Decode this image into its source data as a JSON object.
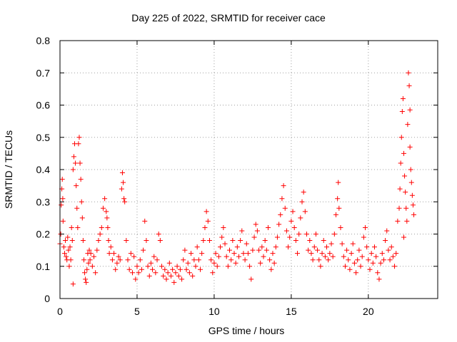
{
  "chart_data": {
    "type": "scatter",
    "title": "Day 225 of 2022, SRMTID for receiver cace",
    "xlabel": "GPS time / hours",
    "ylabel": "SRMTID / TECUs",
    "xlim": [
      0,
      24.5
    ],
    "ylim": [
      0,
      0.8
    ],
    "x_ticks": [
      0,
      5,
      10,
      15,
      20
    ],
    "y_ticks": [
      0,
      0.1,
      0.2,
      0.3,
      0.4,
      0.5,
      0.6,
      0.7,
      0.8
    ],
    "x_tick_labels": [
      "0",
      "5",
      "10",
      "15",
      "20"
    ],
    "y_tick_labels": [
      "0",
      "0.1",
      "0.2",
      "0.3",
      "0.4",
      "0.5",
      "0.6",
      "0.7",
      "0.8"
    ],
    "grid": true,
    "marker": "+",
    "color": "#ff0000",
    "series": [
      {
        "name": "SRMTID",
        "points": [
          [
            0.0,
            0.17
          ],
          [
            0.05,
            0.2
          ],
          [
            0.08,
            0.29
          ],
          [
            0.12,
            0.34
          ],
          [
            0.15,
            0.37
          ],
          [
            0.18,
            0.31
          ],
          [
            0.2,
            0.24
          ],
          [
            0.25,
            0.16
          ],
          [
            0.3,
            0.14
          ],
          [
            0.35,
            0.18
          ],
          [
            0.4,
            0.13
          ],
          [
            0.45,
            0.12
          ],
          [
            0.5,
            0.19
          ],
          [
            0.55,
            0.15
          ],
          [
            0.6,
            0.1
          ],
          [
            0.65,
            0.16
          ],
          [
            0.7,
            0.12
          ],
          [
            0.75,
            0.22
          ],
          [
            0.8,
            0.18
          ],
          [
            0.85,
            0.4
          ],
          [
            0.9,
            0.44
          ],
          [
            0.95,
            0.48
          ],
          [
            1.0,
            0.42
          ],
          [
            1.05,
            0.35
          ],
          [
            1.1,
            0.28
          ],
          [
            1.15,
            0.22
          ],
          [
            1.2,
            0.48
          ],
          [
            1.25,
            0.5
          ],
          [
            1.3,
            0.42
          ],
          [
            1.35,
            0.37
          ],
          [
            0.85,
            0.045
          ],
          [
            1.4,
            0.3
          ],
          [
            1.45,
            0.25
          ],
          [
            1.5,
            0.18
          ],
          [
            1.55,
            0.12
          ],
          [
            1.6,
            0.08
          ],
          [
            1.65,
            0.06
          ],
          [
            1.7,
            0.05
          ],
          [
            1.75,
            0.09
          ],
          [
            1.8,
            0.14
          ],
          [
            1.85,
            0.11
          ],
          [
            1.9,
            0.15
          ],
          [
            1.95,
            0.12
          ],
          [
            2.0,
            0.14
          ],
          [
            2.1,
            0.1
          ],
          [
            2.2,
            0.13
          ],
          [
            2.3,
            0.08
          ],
          [
            2.4,
            0.15
          ],
          [
            2.5,
            0.18
          ],
          [
            2.6,
            0.2
          ],
          [
            2.7,
            0.22
          ],
          [
            2.8,
            0.28
          ],
          [
            2.9,
            0.31
          ],
          [
            3.0,
            0.27
          ],
          [
            3.05,
            0.25
          ],
          [
            3.1,
            0.22
          ],
          [
            3.15,
            0.18
          ],
          [
            3.2,
            0.14
          ],
          [
            3.3,
            0.16
          ],
          [
            3.4,
            0.12
          ],
          [
            3.5,
            0.14
          ],
          [
            3.6,
            0.09
          ],
          [
            3.7,
            0.11
          ],
          [
            3.8,
            0.13
          ],
          [
            3.9,
            0.12
          ],
          [
            4.0,
            0.34
          ],
          [
            4.05,
            0.39
          ],
          [
            4.1,
            0.36
          ],
          [
            4.15,
            0.31
          ],
          [
            4.2,
            0.3
          ],
          [
            4.3,
            0.18
          ],
          [
            4.4,
            0.12
          ],
          [
            4.5,
            0.09
          ],
          [
            4.6,
            0.14
          ],
          [
            4.7,
            0.08
          ],
          [
            4.8,
            0.13
          ],
          [
            4.9,
            0.06
          ],
          [
            5.0,
            0.1
          ],
          [
            5.1,
            0.08
          ],
          [
            5.2,
            0.12
          ],
          [
            5.3,
            0.09
          ],
          [
            5.4,
            0.15
          ],
          [
            5.5,
            0.24
          ],
          [
            5.6,
            0.18
          ],
          [
            5.7,
            0.1
          ],
          [
            5.8,
            0.07
          ],
          [
            5.9,
            0.11
          ],
          [
            6.0,
            0.09
          ],
          [
            6.1,
            0.13
          ],
          [
            6.2,
            0.08
          ],
          [
            6.3,
            0.12
          ],
          [
            6.4,
            0.2
          ],
          [
            6.5,
            0.18
          ],
          [
            6.6,
            0.1
          ],
          [
            6.7,
            0.07
          ],
          [
            6.8,
            0.09
          ],
          [
            6.9,
            0.06
          ],
          [
            7.0,
            0.08
          ],
          [
            7.1,
            0.11
          ],
          [
            7.2,
            0.07
          ],
          [
            7.3,
            0.09
          ],
          [
            7.4,
            0.05
          ],
          [
            7.5,
            0.08
          ],
          [
            7.6,
            0.1
          ],
          [
            7.7,
            0.07
          ],
          [
            7.8,
            0.09
          ],
          [
            7.9,
            0.06
          ],
          [
            8.0,
            0.12
          ],
          [
            8.1,
            0.15
          ],
          [
            8.2,
            0.09
          ],
          [
            8.3,
            0.11
          ],
          [
            8.4,
            0.08
          ],
          [
            8.5,
            0.14
          ],
          [
            8.6,
            0.07
          ],
          [
            8.7,
            0.12
          ],
          [
            8.8,
            0.1
          ],
          [
            8.9,
            0.16
          ],
          [
            9.0,
            0.12
          ],
          [
            9.1,
            0.09
          ],
          [
            9.2,
            0.14
          ],
          [
            9.3,
            0.18
          ],
          [
            9.4,
            0.22
          ],
          [
            9.5,
            0.27
          ],
          [
            9.6,
            0.24
          ],
          [
            9.7,
            0.18
          ],
          [
            9.8,
            0.12
          ],
          [
            9.9,
            0.08
          ],
          [
            10.0,
            0.11
          ],
          [
            10.1,
            0.14
          ],
          [
            10.2,
            0.1
          ],
          [
            10.3,
            0.13
          ],
          [
            10.4,
            0.16
          ],
          [
            10.5,
            0.19
          ],
          [
            10.6,
            0.22
          ],
          [
            10.7,
            0.17
          ],
          [
            10.8,
            0.13
          ],
          [
            10.9,
            0.1
          ],
          [
            11.0,
            0.15
          ],
          [
            11.1,
            0.12
          ],
          [
            11.2,
            0.18
          ],
          [
            11.3,
            0.14
          ],
          [
            11.4,
            0.11
          ],
          [
            11.5,
            0.16
          ],
          [
            11.6,
            0.13
          ],
          [
            11.7,
            0.18
          ],
          [
            11.8,
            0.21
          ],
          [
            11.9,
            0.14
          ],
          [
            12.0,
            0.12
          ],
          [
            12.1,
            0.17
          ],
          [
            12.2,
            0.14
          ],
          [
            12.3,
            0.1
          ],
          [
            12.4,
            0.06
          ],
          [
            12.5,
            0.15
          ],
          [
            12.6,
            0.19
          ],
          [
            12.7,
            0.23
          ],
          [
            12.8,
            0.21
          ],
          [
            12.9,
            0.15
          ],
          [
            13.0,
            0.11
          ],
          [
            13.1,
            0.16
          ],
          [
            13.2,
            0.13
          ],
          [
            13.3,
            0.18
          ],
          [
            13.4,
            0.15
          ],
          [
            13.5,
            0.22
          ],
          [
            13.6,
            0.12
          ],
          [
            13.7,
            0.09
          ],
          [
            13.8,
            0.14
          ],
          [
            13.9,
            0.11
          ],
          [
            14.0,
            0.16
          ],
          [
            14.1,
            0.19
          ],
          [
            14.2,
            0.23
          ],
          [
            14.3,
            0.26
          ],
          [
            14.4,
            0.31
          ],
          [
            14.5,
            0.35
          ],
          [
            14.6,
            0.28
          ],
          [
            14.7,
            0.21
          ],
          [
            14.8,
            0.16
          ],
          [
            14.9,
            0.19
          ],
          [
            15.0,
            0.24
          ],
          [
            15.1,
            0.27
          ],
          [
            15.2,
            0.22
          ],
          [
            15.3,
            0.18
          ],
          [
            15.4,
            0.14
          ],
          [
            15.5,
            0.2
          ],
          [
            15.6,
            0.25
          ],
          [
            15.7,
            0.3
          ],
          [
            15.8,
            0.33
          ],
          [
            15.9,
            0.27
          ],
          [
            16.0,
            0.2
          ],
          [
            16.1,
            0.15
          ],
          [
            16.2,
            0.18
          ],
          [
            16.3,
            0.14
          ],
          [
            16.4,
            0.12
          ],
          [
            16.5,
            0.16
          ],
          [
            16.6,
            0.2
          ],
          [
            16.7,
            0.15
          ],
          [
            16.8,
            0.12
          ],
          [
            16.9,
            0.1
          ],
          [
            17.0,
            0.14
          ],
          [
            17.1,
            0.18
          ],
          [
            17.2,
            0.13
          ],
          [
            17.3,
            0.16
          ],
          [
            17.4,
            0.12
          ],
          [
            17.5,
            0.14
          ],
          [
            17.6,
            0.17
          ],
          [
            17.7,
            0.13
          ],
          [
            17.8,
            0.2
          ],
          [
            17.9,
            0.26
          ],
          [
            18.0,
            0.31
          ],
          [
            18.05,
            0.36
          ],
          [
            18.1,
            0.28
          ],
          [
            18.2,
            0.22
          ],
          [
            18.3,
            0.17
          ],
          [
            18.4,
            0.13
          ],
          [
            18.5,
            0.1
          ],
          [
            18.6,
            0.15
          ],
          [
            18.7,
            0.12
          ],
          [
            18.8,
            0.09
          ],
          [
            18.9,
            0.14
          ],
          [
            19.0,
            0.17
          ],
          [
            19.1,
            0.11
          ],
          [
            19.2,
            0.08
          ],
          [
            19.3,
            0.12
          ],
          [
            19.4,
            0.15
          ],
          [
            19.5,
            0.1
          ],
          [
            19.6,
            0.13
          ],
          [
            19.7,
            0.19
          ],
          [
            19.8,
            0.22
          ],
          [
            19.9,
            0.16
          ],
          [
            20.0,
            0.12
          ],
          [
            20.1,
            0.09
          ],
          [
            20.2,
            0.14
          ],
          [
            20.3,
            0.11
          ],
          [
            20.4,
            0.16
          ],
          [
            20.5,
            0.13
          ],
          [
            20.6,
            0.08
          ],
          [
            20.7,
            0.06
          ],
          [
            20.8,
            0.11
          ],
          [
            20.9,
            0.14
          ],
          [
            21.0,
            0.12
          ],
          [
            21.1,
            0.18
          ],
          [
            21.2,
            0.21
          ],
          [
            21.3,
            0.15
          ],
          [
            21.4,
            0.12
          ],
          [
            21.5,
            0.16
          ],
          [
            21.6,
            0.13
          ],
          [
            21.7,
            0.1
          ],
          [
            21.8,
            0.14
          ],
          [
            21.9,
            0.24
          ],
          [
            22.0,
            0.28
          ],
          [
            22.05,
            0.34
          ],
          [
            22.1,
            0.42
          ],
          [
            22.15,
            0.5
          ],
          [
            22.2,
            0.58
          ],
          [
            22.25,
            0.62
          ],
          [
            22.3,
            0.45
          ],
          [
            22.35,
            0.38
          ],
          [
            22.4,
            0.33
          ],
          [
            22.45,
            0.28
          ],
          [
            22.5,
            0.24
          ],
          [
            22.55,
            0.54
          ],
          [
            22.6,
            0.7
          ],
          [
            22.65,
            0.66
          ],
          [
            22.7,
            0.47
          ],
          [
            22.75,
            0.4
          ],
          [
            22.8,
            0.36
          ],
          [
            22.85,
            0.32
          ],
          [
            22.9,
            0.29
          ],
          [
            22.95,
            0.26
          ],
          [
            22.7,
            0.585
          ],
          [
            22.3,
            0.19
          ]
        ]
      }
    ]
  }
}
